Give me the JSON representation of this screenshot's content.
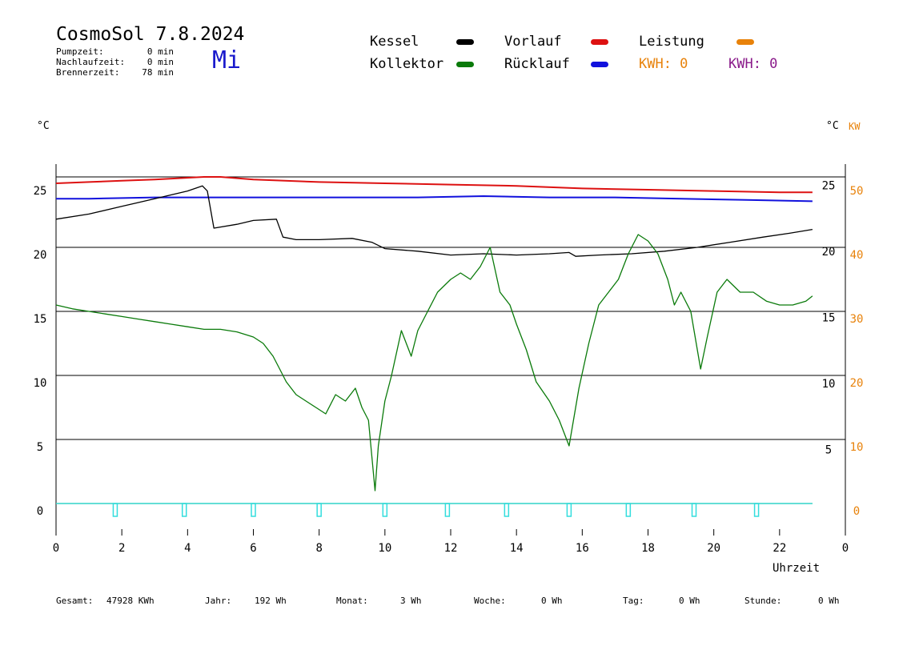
{
  "header": {
    "title": "CosmoSol 7.8.2024",
    "day": "Mi",
    "stats": [
      {
        "label": "Pumpzeit:",
        "value": "0 min"
      },
      {
        "label": "Nachlaufzeit:",
        "value": "0 min"
      },
      {
        "label": "Brennerzeit:",
        "value": "78 min"
      }
    ]
  },
  "legend": {
    "kessel": {
      "label": "Kessel",
      "color": "#000000"
    },
    "kollektor": {
      "label": "Kollektor",
      "color": "#0a7a0a"
    },
    "vorlauf": {
      "label": "Vorlauf",
      "color": "#dd1111"
    },
    "ruecklauf": {
      "label": "Rücklauf",
      "color": "#1111dd"
    },
    "leistung": {
      "label": "Leistung",
      "color": "#e8820a"
    },
    "kwh_orange": "KWH: 0",
    "kwh_purple": "KWH: 0"
  },
  "axes": {
    "left_unit": "°C",
    "right_unit_c": "°C",
    "right_unit_kw": "KW",
    "x_label": "Uhrzeit"
  },
  "footer": [
    {
      "label": "Gesamt:",
      "value": "47928 KWh"
    },
    {
      "label": "Jahr:",
      "value": "192 Wh"
    },
    {
      "label": "Monat:",
      "value": "3 Wh"
    },
    {
      "label": "Woche:",
      "value": "0 Wh"
    },
    {
      "label": "Tag:",
      "value": "0 Wh"
    },
    {
      "label": "Stunde:",
      "value": "0 Wh"
    }
  ],
  "chart_data": {
    "type": "line",
    "title": "CosmoSol 7.8.2024",
    "xlabel": "Uhrzeit",
    "ylabel": "°C",
    "xlim": [
      0,
      24
    ],
    "ylim": [
      -2,
      27
    ],
    "x_ticks": [
      "0",
      "2",
      "4",
      "6",
      "8",
      "10",
      "12",
      "14",
      "16",
      "18",
      "20",
      "22",
      "0"
    ],
    "y_ticks_left": [
      "0",
      "5",
      "10",
      "15",
      "20",
      "25"
    ],
    "y_ticks_right_c": [
      "5",
      "10",
      "15",
      "20",
      "25"
    ],
    "y_ticks_right_kw": [
      "0",
      "10",
      "20",
      "30",
      "40",
      "50"
    ],
    "grid_y": [
      5,
      10,
      15,
      20,
      25.5
    ],
    "series": [
      {
        "name": "Vorlauf",
        "color": "#dd1111",
        "x": [
          0,
          1,
          2,
          3,
          4.5,
          5,
          6,
          8,
          10,
          12,
          14,
          16,
          18,
          20,
          22,
          23
        ],
        "y": [
          25.0,
          25.1,
          25.2,
          25.3,
          25.5,
          25.5,
          25.3,
          25.1,
          25.0,
          24.9,
          24.8,
          24.6,
          24.5,
          24.4,
          24.3,
          24.3
        ]
      },
      {
        "name": "Rücklauf",
        "color": "#1111dd",
        "x": [
          0,
          1,
          3,
          5,
          7,
          9,
          11,
          13,
          15,
          17,
          19,
          21,
          23
        ],
        "y": [
          23.8,
          23.8,
          23.9,
          23.9,
          23.9,
          23.9,
          23.9,
          24.0,
          23.9,
          23.9,
          23.8,
          23.7,
          23.6
        ]
      },
      {
        "name": "Kessel",
        "color": "#000000",
        "x": [
          0,
          1,
          2,
          3,
          4,
          4.45,
          4.6,
          4.8,
          5.5,
          6.0,
          6.7,
          6.9,
          7.3,
          8,
          9,
          9.6,
          10,
          11,
          12,
          13,
          14,
          15,
          15.6,
          15.8,
          16.5,
          17.5,
          18.5,
          19.5,
          20.5,
          21.5,
          22.3,
          23
        ],
        "y": [
          22.2,
          22.6,
          23.2,
          23.8,
          24.4,
          24.8,
          24.4,
          21.5,
          21.8,
          22.1,
          22.2,
          20.8,
          20.6,
          20.6,
          20.7,
          20.4,
          19.9,
          19.7,
          19.4,
          19.5,
          19.4,
          19.5,
          19.6,
          19.3,
          19.4,
          19.5,
          19.7,
          20.0,
          20.4,
          20.8,
          21.1,
          21.4
        ]
      },
      {
        "name": "Kollektor",
        "color": "#0a7a0a",
        "x": [
          0,
          0.5,
          1,
          1.5,
          2,
          2.5,
          3,
          3.5,
          4,
          4.5,
          5,
          5.5,
          6,
          6.3,
          6.6,
          6.8,
          7,
          7.3,
          7.6,
          7.9,
          8.2,
          8.5,
          8.8,
          9.1,
          9.3,
          9.5,
          9.7,
          9.8,
          10,
          10.2,
          10.5,
          10.8,
          11,
          11.3,
          11.6,
          12,
          12.3,
          12.6,
          12.9,
          13.2,
          13.5,
          13.8,
          14,
          14.3,
          14.6,
          15,
          15.3,
          15.6,
          15.9,
          16.2,
          16.5,
          16.8,
          17.1,
          17.4,
          17.7,
          18,
          18.3,
          18.6,
          18.8,
          19,
          19.3,
          19.6,
          19.8,
          20.1,
          20.4,
          20.8,
          21.2,
          21.6,
          22,
          22.4,
          22.8,
          23
        ],
        "y": [
          15.5,
          15.2,
          15.0,
          14.8,
          14.6,
          14.4,
          14.2,
          14.0,
          13.8,
          13.6,
          13.6,
          13.4,
          13.0,
          12.5,
          11.5,
          10.5,
          9.5,
          8.5,
          8.0,
          7.5,
          7.0,
          8.5,
          8.0,
          9.0,
          7.5,
          6.5,
          1.0,
          4.5,
          8.0,
          10.0,
          13.5,
          11.5,
          13.5,
          15.0,
          16.5,
          17.5,
          18.0,
          17.5,
          18.5,
          20.0,
          16.5,
          15.5,
          14.0,
          12.0,
          9.5,
          8.0,
          6.5,
          4.5,
          9.0,
          12.5,
          15.5,
          16.5,
          17.5,
          19.5,
          21.0,
          20.5,
          19.5,
          17.5,
          15.5,
          16.5,
          15.0,
          10.5,
          13.0,
          16.5,
          17.5,
          16.5,
          16.5,
          15.8,
          15.5,
          15.5,
          15.8,
          16.2
        ]
      },
      {
        "name": "Leistung",
        "color": "#e8820a",
        "x": [
          0,
          23
        ],
        "y": [
          0,
          0
        ]
      }
    ],
    "pump_markers_x": [
      1.8,
      3.9,
      6.0,
      8.0,
      10.0,
      11.9,
      13.7,
      15.6,
      17.4,
      19.4,
      21.3
    ]
  }
}
